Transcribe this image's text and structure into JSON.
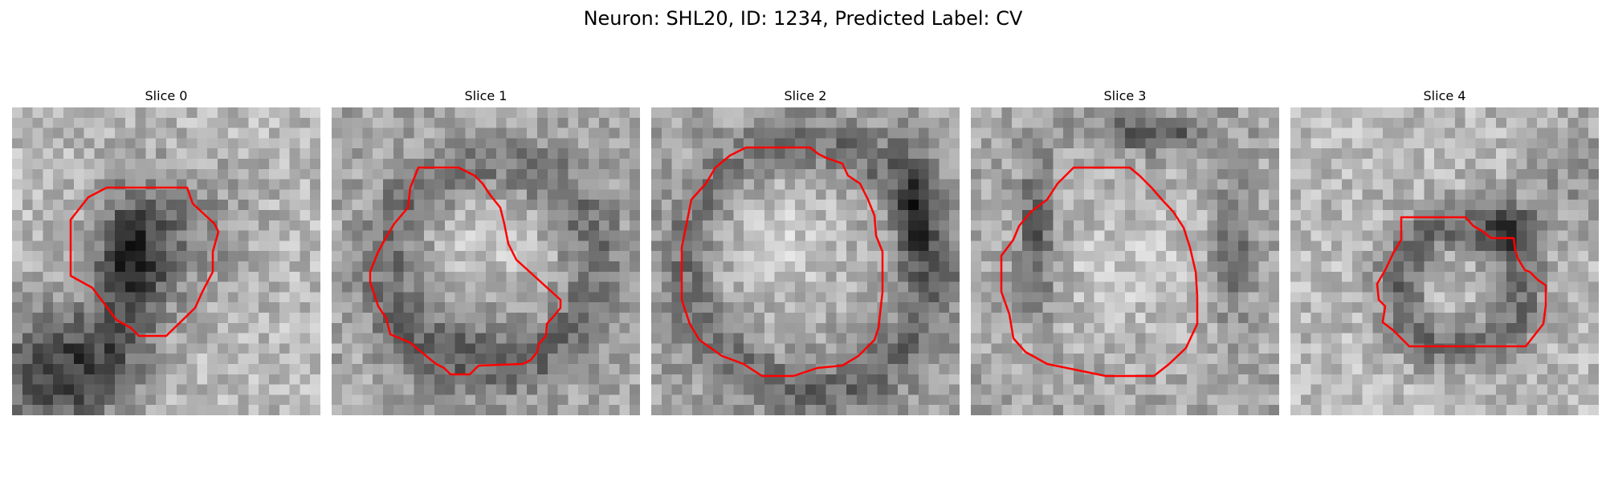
{
  "figure": {
    "title": "Neuron: SHL20, ID: 1234, Predicted Label: CV"
  },
  "colors": {
    "contour": "#ff0000",
    "background": "#ffffff",
    "colormap": "grayscale"
  },
  "slices": [
    {
      "label": "Slice 0"
    },
    {
      "label": "Slice 1"
    },
    {
      "label": "Slice 2"
    },
    {
      "label": "Slice 3"
    },
    {
      "label": "Slice 4"
    }
  ]
}
